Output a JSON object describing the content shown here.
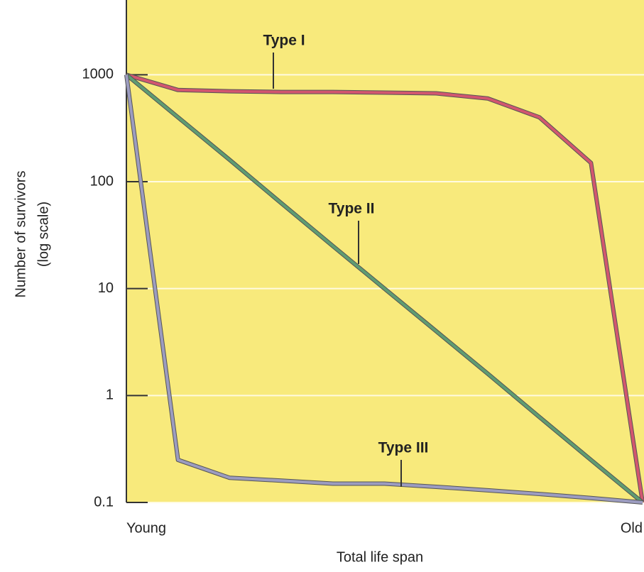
{
  "chart_data": {
    "type": "line",
    "y_label": [
      "Number of survivors",
      "(log scale)"
    ],
    "x_label": "Total life span",
    "categories": [
      "Young",
      null,
      null,
      null,
      null,
      null,
      null,
      null,
      null,
      null,
      "Old"
    ],
    "series": [
      {
        "name": "Type I",
        "color": "#d2566f",
        "values": [
          1000,
          720,
          700,
          690,
          690,
          680,
          670,
          600,
          400,
          150,
          0.1
        ]
      },
      {
        "name": "Type II",
        "color": "#5f9c72",
        "values": [
          1000,
          400,
          160,
          63,
          25,
          10,
          4,
          1.6,
          0.63,
          0.25,
          0.1
        ]
      },
      {
        "name": "Type III",
        "color": "#9c9cc0",
        "values": [
          1000,
          0.25,
          0.17,
          0.16,
          0.15,
          0.15,
          0.14,
          0.13,
          0.12,
          0.11,
          0.1
        ]
      }
    ],
    "ylim": [
      0.1,
      5000
    ],
    "yticks": [
      0.1,
      1,
      10,
      100,
      1000
    ],
    "log_scale": true,
    "grid": true
  }
}
